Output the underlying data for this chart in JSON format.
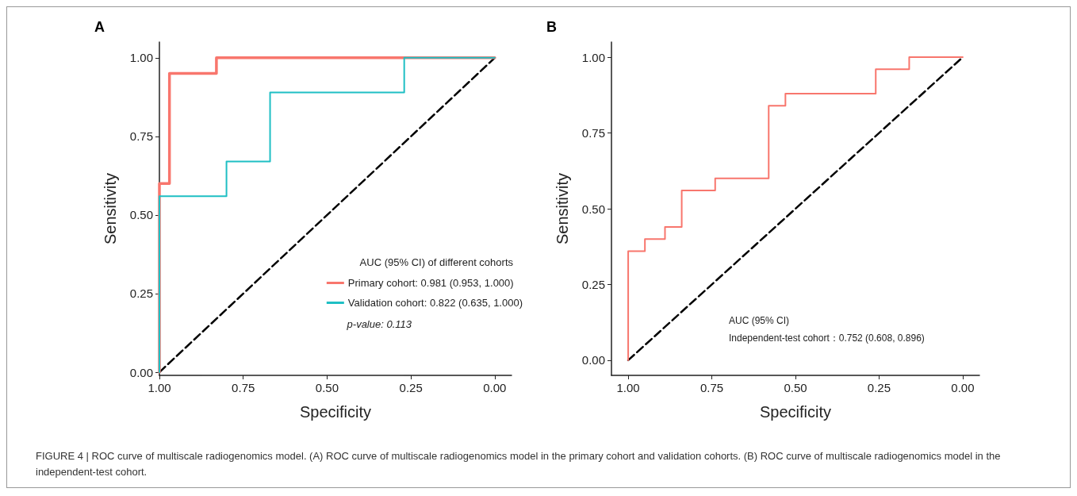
{
  "chart_data": [
    {
      "type": "step",
      "title": "A",
      "xlabel": "Specificity",
      "ylabel": "Sensitivity",
      "legend_title": "AUC (95% CI) of different cohorts",
      "legend": "bottom right",
      "marker": "none",
      "grid": false,
      "xlim": [
        1,
        -0.05
      ],
      "ylim": [
        -0.01,
        1.05
      ],
      "xticks": [
        {
          "value": 1,
          "label": "1.00"
        },
        {
          "value": 0.75,
          "label": "0.75"
        },
        {
          "value": 0.5,
          "label": "0.50"
        },
        {
          "value": 0.25,
          "label": "0.25"
        },
        {
          "value": 0,
          "label": "0.00"
        }
      ],
      "yticks": [
        {
          "value": 0,
          "label": "0.00"
        },
        {
          "value": 0.25,
          "label": "0.25"
        },
        {
          "value": 0.5,
          "label": "0.50"
        },
        {
          "value": 0.75,
          "label": "0.75"
        },
        {
          "value": 1,
          "label": "1.00"
        }
      ],
      "series": [
        {
          "type": "line",
          "color": "#000000",
          "line_style": "dashed",
          "x": [
            1,
            0
          ],
          "values": [
            0,
            1
          ]
        },
        {
          "name": "Primary cohort: 0.981 (0.953, 1.000)",
          "color": "#f8766d",
          "x": [
            1,
            1,
            0.97,
            0.83,
            0
          ],
          "values": [
            0,
            0.6,
            0.95,
            1,
            1
          ]
        },
        {
          "name": "Validation cohort: 0.822 (0.635, 1.000)",
          "color": "#1fbfc4",
          "x": [
            1,
            1,
            0.8,
            0.67,
            0.27,
            0
          ],
          "values": [
            0,
            0.56,
            0.67,
            0.89,
            1,
            1
          ]
        }
      ],
      "annotations": [
        "p-value: 0.113"
      ]
    },
    {
      "type": "step",
      "title": "B",
      "xlabel": "Specificity",
      "ylabel": "Sensitivity",
      "marker": "none",
      "grid": false,
      "xlim": [
        1.05,
        -0.05
      ],
      "ylim": [
        -0.05,
        1.05
      ],
      "xticks": [
        {
          "value": 1,
          "label": "1.00"
        },
        {
          "value": 0.75,
          "label": "0.75"
        },
        {
          "value": 0.5,
          "label": "0.50"
        },
        {
          "value": 0.25,
          "label": "0.25"
        },
        {
          "value": 0,
          "label": "0.00"
        }
      ],
      "yticks": [
        {
          "value": 0,
          "label": "0.00"
        },
        {
          "value": 0.25,
          "label": "0.25"
        },
        {
          "value": 0.5,
          "label": "0.50"
        },
        {
          "value": 0.75,
          "label": "0.75"
        },
        {
          "value": 1,
          "label": "1.00"
        }
      ],
      "series": [
        {
          "type": "line",
          "color": "#000000",
          "line_style": "dashed",
          "x": [
            1,
            0
          ],
          "values": [
            0,
            1
          ]
        },
        {
          "color": "#f8766d",
          "x": [
            1,
            1,
            0.95,
            0.89,
            0.84,
            0.74,
            0.58,
            0.53,
            0.26,
            0.16,
            0
          ],
          "values": [
            0,
            0.36,
            0.4,
            0.44,
            0.56,
            0.6,
            0.84,
            0.88,
            0.96,
            1,
            1
          ]
        }
      ],
      "annotations": [
        "AUC (95% CI)",
        "Independent-test cohort：0.752 (0.608, 0.896)"
      ]
    },
    {
      "type": "other",
      "annotations": [
        "FIGURE 4 | ROC curve of multiscale radiogenomics model. (A) ROC curve of multiscale radiogenomics model in the primary cohort and validation cohorts. (B) ROC curve of multiscale radiogenomics model in the independent-test cohort."
      ]
    }
  ]
}
